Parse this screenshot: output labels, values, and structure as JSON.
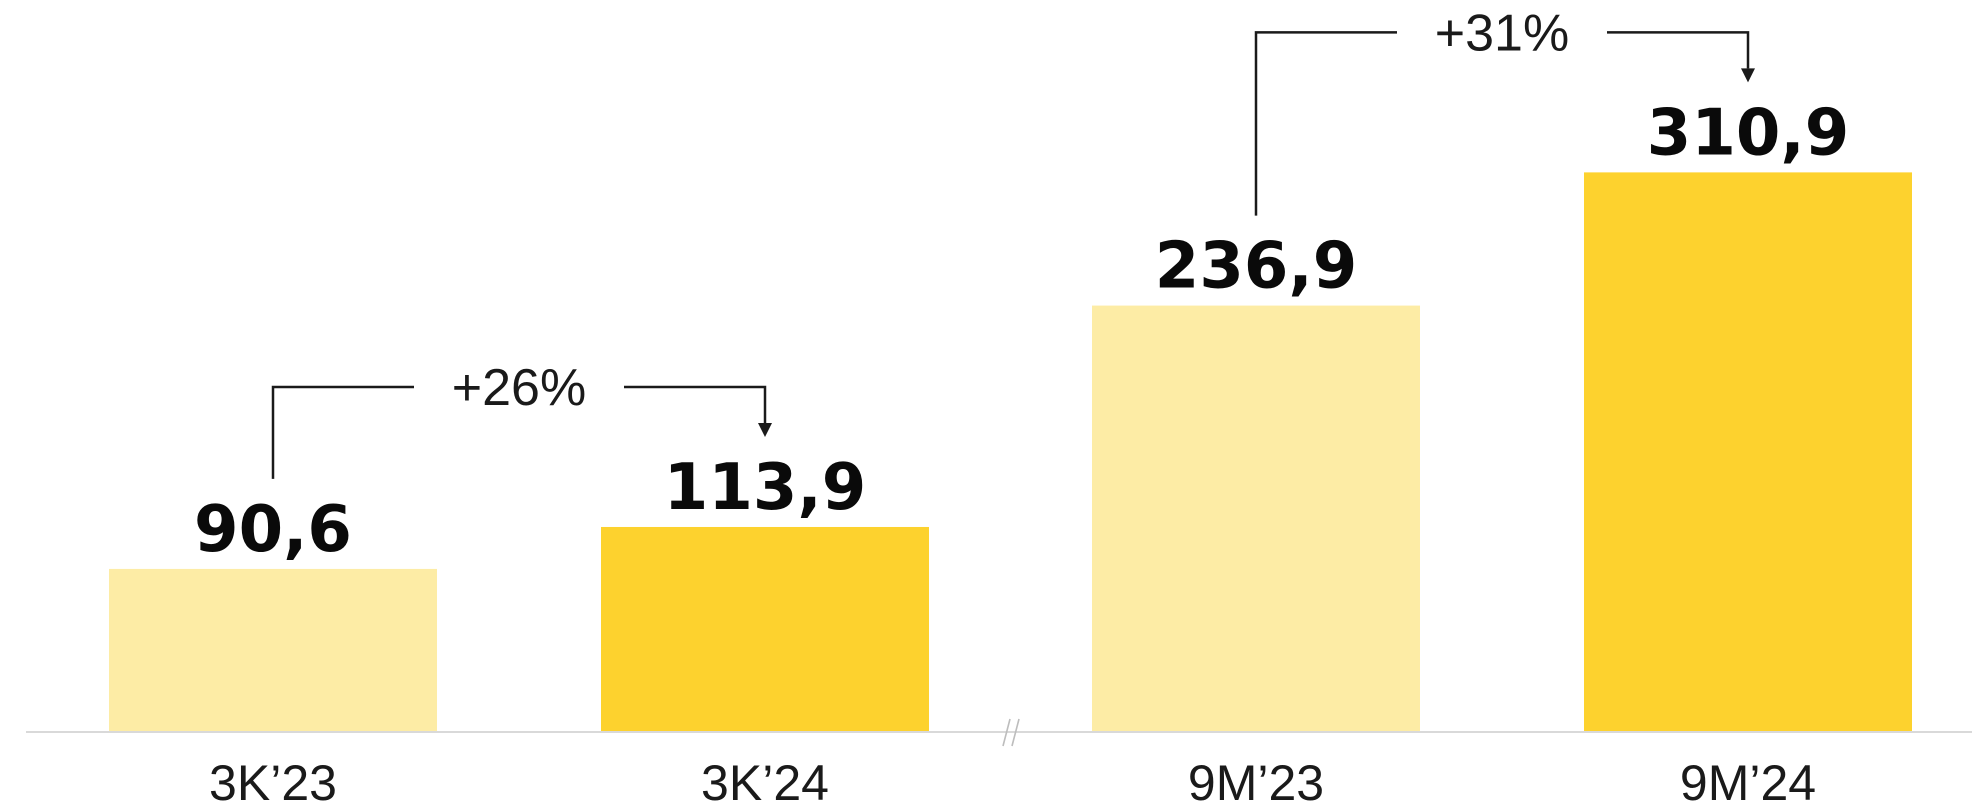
{
  "chart_data": {
    "type": "bar",
    "categories": [
      "3K’23",
      "3K’24",
      "9M’23",
      "9M’24"
    ],
    "values": [
      90.6,
      113.9,
      236.9,
      310.9
    ],
    "value_labels": [
      "90,6",
      "113,9",
      "236,9",
      "310,9"
    ],
    "colors": [
      "#fdeca5",
      "#fdd22e",
      "#fdeca5",
      "#fdd22e"
    ],
    "axis_break": "//",
    "growth_annotations": [
      {
        "from": 0,
        "to": 1,
        "label": "+26%"
      },
      {
        "from": 2,
        "to": 3,
        "label": "+31%"
      }
    ],
    "title": "",
    "xlabel": "",
    "ylabel": "",
    "ylim": [
      0,
      320
    ],
    "grid": false,
    "legend": "none"
  }
}
